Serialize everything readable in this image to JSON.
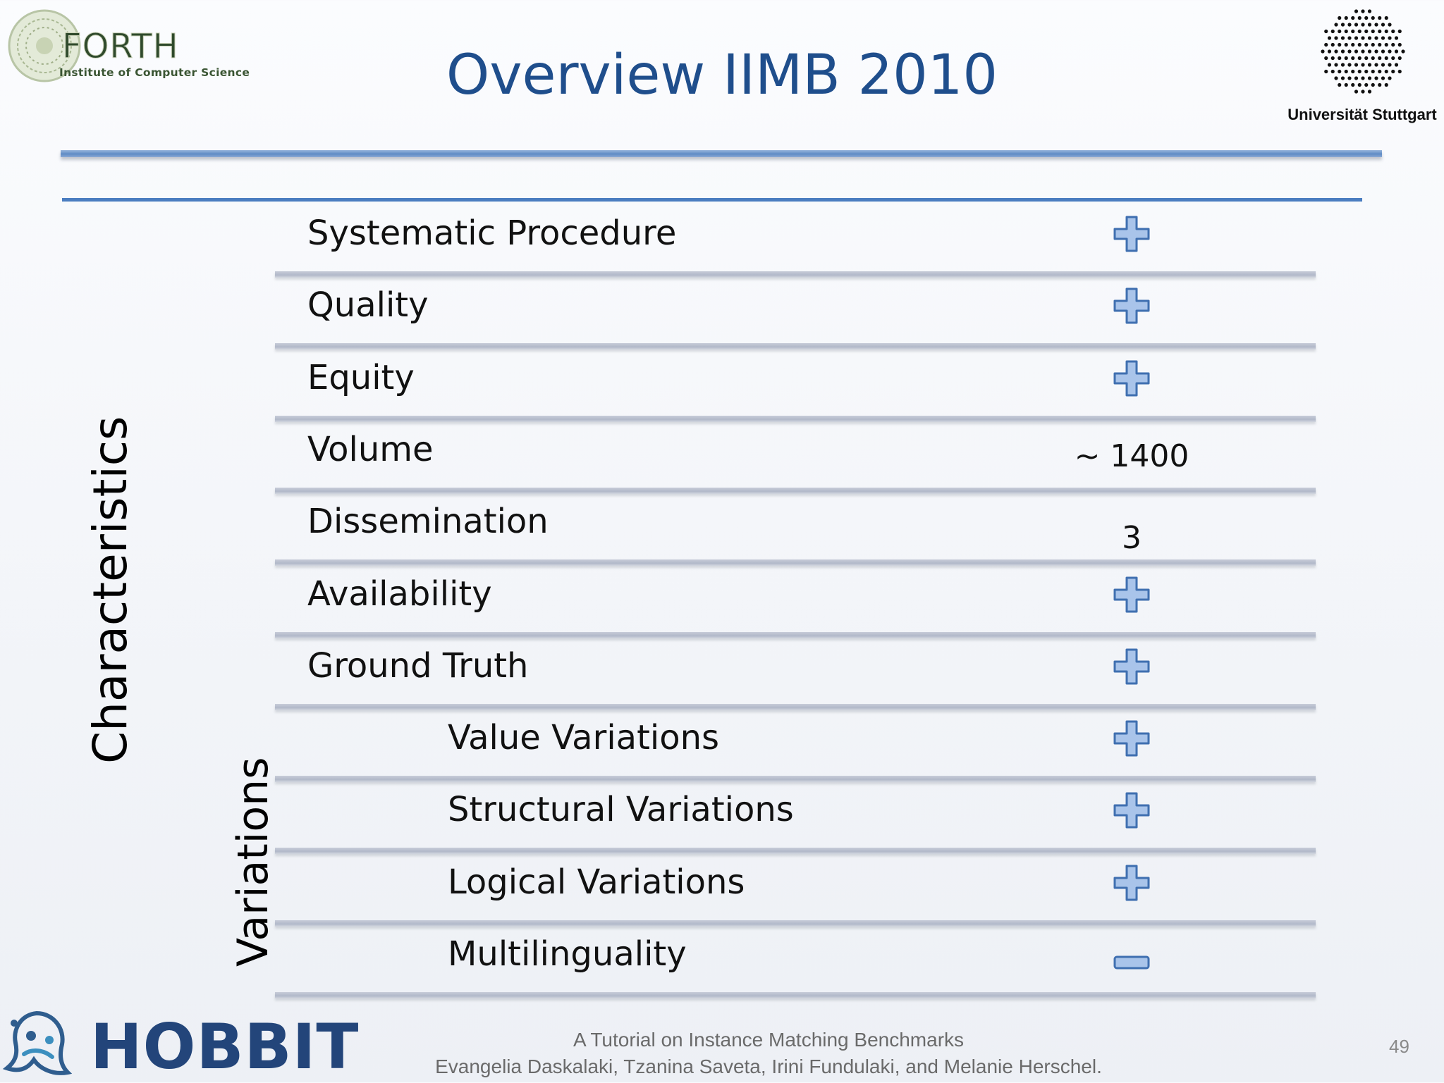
{
  "header": {
    "title": "Overview IIMB 2010",
    "forth_logo": {
      "name": "FORTH",
      "subtitle": "Institute of Computer Science"
    },
    "stuttgart_logo": {
      "name": "Universität Stuttgart"
    }
  },
  "side_labels": {
    "characteristics": "Characteristics",
    "variations": "Variations"
  },
  "rows": [
    {
      "label": "Systematic Procedure",
      "value_type": "plus-icon"
    },
    {
      "label": "Quality",
      "value_type": "plus-icon"
    },
    {
      "label": "Equity",
      "value_type": "plus-icon"
    },
    {
      "label": "Volume",
      "value_type": "text",
      "value": "~ 1400"
    },
    {
      "label": "Dissemination",
      "value_type": "text",
      "value": "3"
    },
    {
      "label": "Availability",
      "value_type": "plus-icon"
    },
    {
      "label": "Ground Truth",
      "value_type": "plus-icon"
    },
    {
      "label": "Value Variations",
      "value_type": "plus-icon"
    },
    {
      "label": "Structural Variations",
      "value_type": "plus-icon"
    },
    {
      "label": "Logical Variations",
      "value_type": "plus-icon"
    },
    {
      "label": "Multilinguality",
      "value_type": "minus-icon"
    }
  ],
  "footer": {
    "logo_text": "HOBBIT",
    "title": "A Tutorial on Instance Matching Benchmarks",
    "authors": "Evangelia Daskalaki, Tzanina Saveta, Irini Fundulaki, and Melanie Herschel.",
    "page_number": "49"
  },
  "colors": {
    "title": "#1f4e8c",
    "rule_blue": "#4a7dc0",
    "icon_fill": "#a9c4ea",
    "icon_stroke": "#3f6fb0"
  }
}
